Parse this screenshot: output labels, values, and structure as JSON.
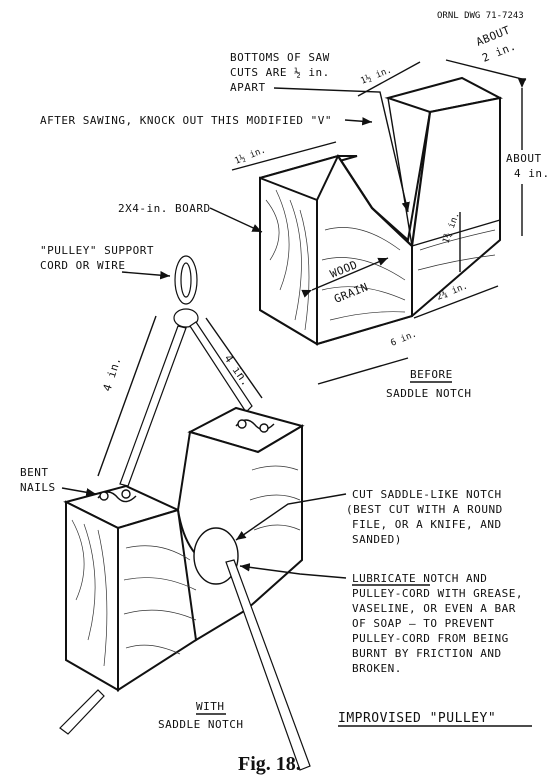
{
  "header": {
    "drawing_number": "ORNL DWG 71-7243"
  },
  "top_diagram": {
    "labels": {
      "bottoms_line1": "BOTTOMS OF SAW",
      "bottoms_line2": "CUTS ARE ½ in.",
      "bottoms_line3": "APART",
      "after_sawing": "AFTER SAWING, KNOCK OUT THIS MODIFIED \"V\"",
      "board": "2X4-in. BOARD",
      "wood": "WOOD",
      "grain": "GRAIN",
      "caption_line1": "BEFORE",
      "caption_line2": "SADDLE NOTCH"
    },
    "dimensions": {
      "top_left": "1½ in.",
      "top_right": "1½ in.",
      "about_2_line1": "ABOUT",
      "about_2_line2": "2 in.",
      "about_4_line1": "ABOUT",
      "about_4_line2": "4 in.",
      "depth": "1¾ in.",
      "bottom_width": "2¾ in.",
      "length": "6 in."
    }
  },
  "bottom_diagram": {
    "labels": {
      "support_line1": "\"PULLEY\" SUPPORT",
      "support_line2": "CORD OR WIRE",
      "bent_line1": "BENT",
      "bent_line2": "NAILS",
      "dim_left": "4 in.",
      "dim_right": "4 in.",
      "caption_line1": "WITH",
      "caption_line2": "SADDLE NOTCH"
    },
    "notes": {
      "cut_line1": "CUT SADDLE-LIKE NOTCH",
      "cut_line2": "(BEST CUT WITH A ROUND",
      "cut_line3": "FILE, OR A KNIFE, AND",
      "cut_line4": "SANDED)",
      "lub_line1": "LUBRICATE NOTCH AND",
      "lub_line2": "PULLEY-CORD WITH GREASE,",
      "lub_line3": "VASELINE, OR EVEN A BAR",
      "lub_line4": "OF SOAP — TO PREVENT",
      "lub_line5": "PULLEY-CORD FROM BEING",
      "lub_line6": "BURNT BY FRICTION AND",
      "lub_line7": "BROKEN."
    },
    "title": "IMPROVISED \"PULLEY\""
  },
  "figure_caption": "Fig. 18."
}
